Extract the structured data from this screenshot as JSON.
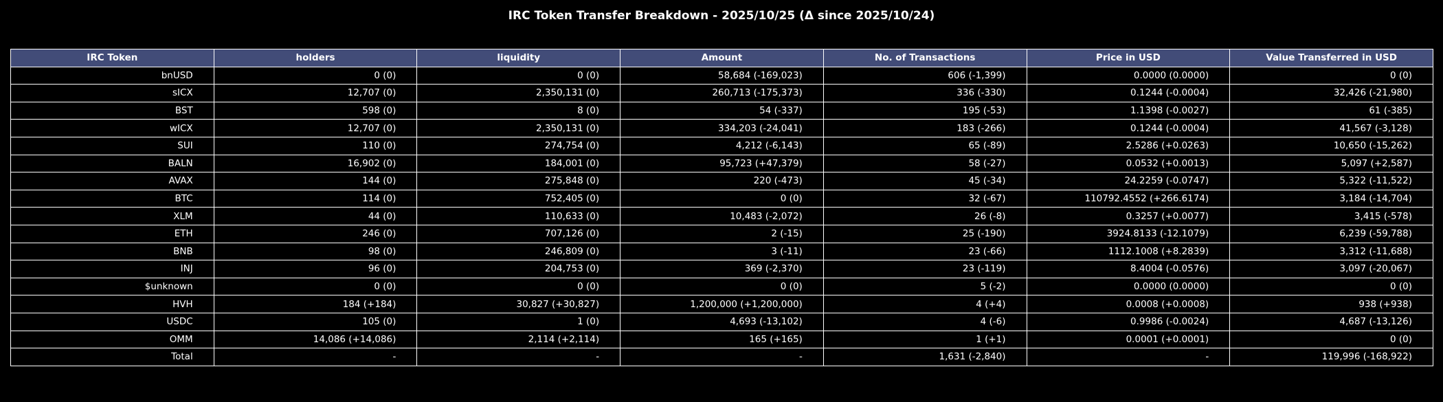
{
  "chart_data": {
    "type": "table",
    "title": "IRC Token Transfer Breakdown - 2025/10/25 (Δ since 2025/10/24)",
    "columns": [
      "IRC Token",
      "holders",
      "liquidity",
      "Amount",
      "No. of Transactions",
      "Price in USD",
      "Value Transferred in USD"
    ],
    "rows": [
      [
        "bnUSD",
        "0 (0)",
        "0 (0)",
        "58,684 (-169,023)",
        "606 (-1,399)",
        "0.0000 (0.0000)",
        "0 (0)"
      ],
      [
        "sICX",
        "12,707 (0)",
        "2,350,131 (0)",
        "260,713 (-175,373)",
        "336 (-330)",
        "0.1244 (-0.0004)",
        "32,426 (-21,980)"
      ],
      [
        "BST",
        "598 (0)",
        "8 (0)",
        "54 (-337)",
        "195 (-53)",
        "1.1398 (-0.0027)",
        "61 (-385)"
      ],
      [
        "wICX",
        "12,707 (0)",
        "2,350,131 (0)",
        "334,203 (-24,041)",
        "183 (-266)",
        "0.1244 (-0.0004)",
        "41,567 (-3,128)"
      ],
      [
        "SUI",
        "110 (0)",
        "274,754 (0)",
        "4,212 (-6,143)",
        "65 (-89)",
        "2.5286 (+0.0263)",
        "10,650 (-15,262)"
      ],
      [
        "BALN",
        "16,902 (0)",
        "184,001 (0)",
        "95,723 (+47,379)",
        "58 (-27)",
        "0.0532 (+0.0013)",
        "5,097 (+2,587)"
      ],
      [
        "AVAX",
        "144 (0)",
        "275,848 (0)",
        "220 (-473)",
        "45 (-34)",
        "24.2259 (-0.0747)",
        "5,322 (-11,522)"
      ],
      [
        "BTC",
        "114 (0)",
        "752,405 (0)",
        "0 (0)",
        "32 (-67)",
        "110792.4552 (+266.6174)",
        "3,184 (-14,704)"
      ],
      [
        "XLM",
        "44 (0)",
        "110,633 (0)",
        "10,483 (-2,072)",
        "26 (-8)",
        "0.3257 (+0.0077)",
        "3,415 (-578)"
      ],
      [
        "ETH",
        "246 (0)",
        "707,126 (0)",
        "2 (-15)",
        "25 (-190)",
        "3924.8133 (-12.1079)",
        "6,239 (-59,788)"
      ],
      [
        "BNB",
        "98 (0)",
        "246,809 (0)",
        "3 (-11)",
        "23 (-66)",
        "1112.1008 (+8.2839)",
        "3,312 (-11,688)"
      ],
      [
        "INJ",
        "96 (0)",
        "204,753 (0)",
        "369 (-2,370)",
        "23 (-119)",
        "8.4004 (-0.0576)",
        "3,097 (-20,067)"
      ],
      [
        "$unknown",
        "0 (0)",
        "0 (0)",
        "0 (0)",
        "5 (-2)",
        "0.0000 (0.0000)",
        "0 (0)"
      ],
      [
        "HVH",
        "184 (+184)",
        "30,827 (+30,827)",
        "1,200,000 (+1,200,000)",
        "4 (+4)",
        "0.0008 (+0.0008)",
        "938 (+938)"
      ],
      [
        "USDC",
        "105 (0)",
        "1 (0)",
        "4,693 (-13,102)",
        "4 (-6)",
        "0.9986 (-0.0024)",
        "4,687 (-13,126)"
      ],
      [
        "OMM",
        "14,086 (+14,086)",
        "2,114 (+2,114)",
        "165 (+165)",
        "1 (+1)",
        "0.0001 (+0.0001)",
        "0 (0)"
      ],
      [
        "Total",
        "-",
        "-",
        "-",
        "1,631 (-2,840)",
        "-",
        "119,996 (-168,922)"
      ]
    ]
  },
  "colors": {
    "background": "#000000",
    "header_fill": "#424c78",
    "grid_line": "#ffffff",
    "text": "#ffffff"
  }
}
